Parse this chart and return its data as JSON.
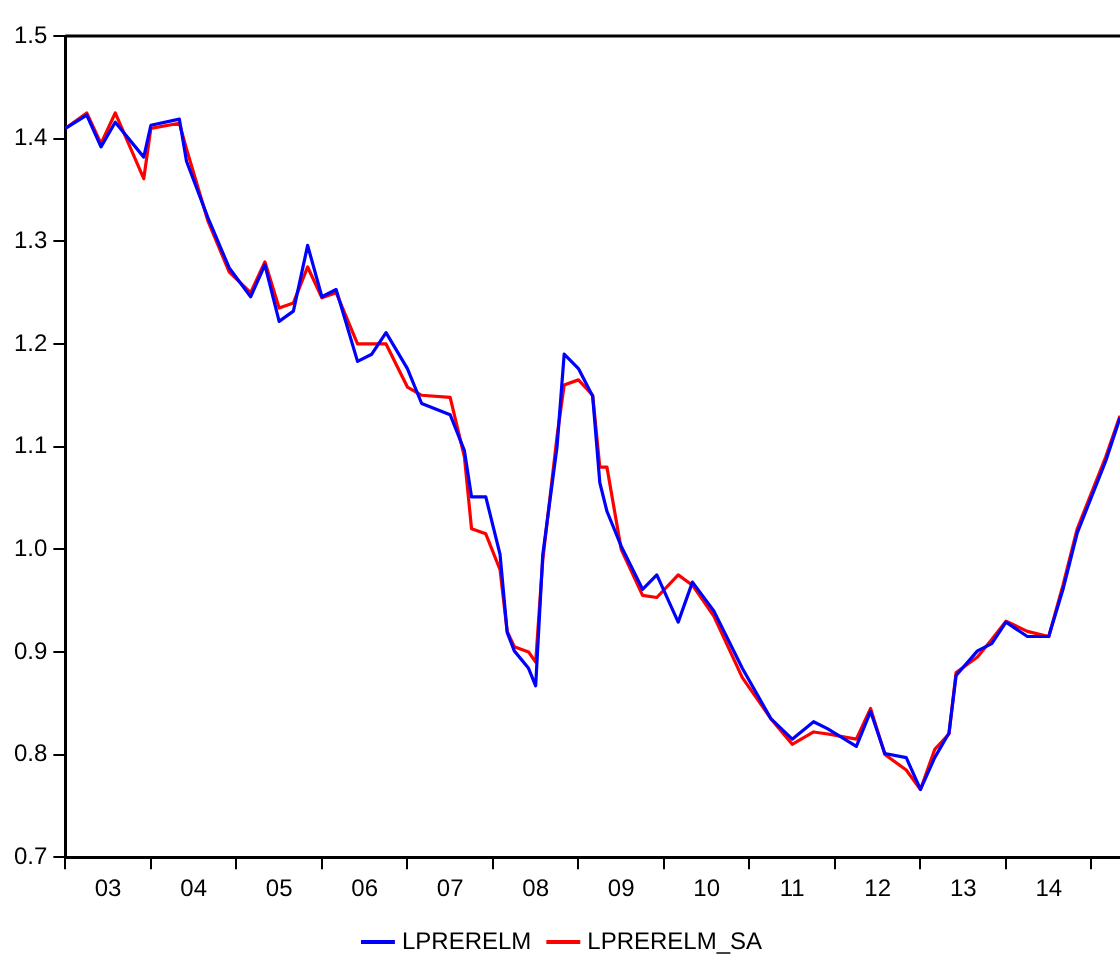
{
  "chart_data": {
    "type": "line",
    "xlim": [
      "2003-01",
      "2015-05"
    ],
    "xticks": [
      {
        "value": "2003-01",
        "label": null
      },
      {
        "value": "2003-07",
        "label": "03"
      },
      {
        "value": "2004-01",
        "label": null
      },
      {
        "value": "2004-07",
        "label": "04"
      },
      {
        "value": "2005-01",
        "label": null
      },
      {
        "value": "2005-07",
        "label": "05"
      },
      {
        "value": "2006-01",
        "label": null
      },
      {
        "value": "2006-07",
        "label": "06"
      },
      {
        "value": "2007-01",
        "label": null
      },
      {
        "value": "2007-07",
        "label": "07"
      },
      {
        "value": "2008-01",
        "label": null
      },
      {
        "value": "2008-07",
        "label": "08"
      },
      {
        "value": "2009-01",
        "label": null
      },
      {
        "value": "2009-07",
        "label": "09"
      },
      {
        "value": "2010-01",
        "label": null
      },
      {
        "value": "2010-07",
        "label": "10"
      },
      {
        "value": "2011-01",
        "label": null
      },
      {
        "value": "2011-07",
        "label": "11"
      },
      {
        "value": "2012-01",
        "label": null
      },
      {
        "value": "2012-07",
        "label": "12"
      },
      {
        "value": "2013-01",
        "label": null
      },
      {
        "value": "2013-07",
        "label": "13"
      },
      {
        "value": "2014-01",
        "label": null
      },
      {
        "value": "2014-07",
        "label": "14"
      },
      {
        "value": "2015-01",
        "label": null
      }
    ],
    "ylim": [
      0.7,
      1.5
    ],
    "yticks": [
      0.7,
      0.8,
      0.9,
      {
        "value": 1,
        "label": "1.0"
      },
      1.1,
      1.2,
      1.3,
      1.4,
      1.5
    ],
    "grid": false,
    "legend": "bottom",
    "marker": "none",
    "line_style": "solid",
    "x": [
      "2003-01",
      "2003-04",
      "2003-06",
      "2003-08",
      "2003-12",
      "2004-01",
      "2004-05",
      "2004-06",
      "2004-09",
      "2004-12",
      "2005-03",
      "2005-05",
      "2005-07",
      "2005-09",
      "2005-11",
      "2006-01",
      "2006-03",
      "2006-06",
      "2006-08",
      "2006-10",
      "2007-01",
      "2007-03",
      "2007-07",
      "2007-09",
      "2007-10",
      "2007-12",
      "2008-02",
      "2008-03",
      "2008-04",
      "2008-06",
      "2008-07",
      "2008-08",
      "2008-10",
      "2008-11",
      "2009-01",
      "2009-03",
      "2009-04",
      "2009-05",
      "2009-07",
      "2009-10",
      "2009-12",
      "2010-03",
      "2010-05",
      "2010-08",
      "2010-12",
      "2011-04",
      "2011-07",
      "2011-10",
      "2011-12",
      "2012-04",
      "2012-06",
      "2012-08",
      "2012-11",
      "2013-01",
      "2013-03",
      "2013-05",
      "2013-06",
      "2013-09",
      "2013-11",
      "2014-01",
      "2014-04",
      "2014-07",
      "2014-09",
      "2014-11",
      "2015-01",
      "2015-03",
      "2015-05"
    ],
    "series": [
      {
        "name": "LPRERELM",
        "color": "#0000ff",
        "values": [
          1.41,
          1.423,
          1.392,
          1.416,
          1.382,
          1.413,
          1.419,
          1.378,
          1.323,
          1.274,
          1.246,
          1.277,
          1.222,
          1.232,
          1.296,
          1.246,
          1.253,
          1.183,
          1.19,
          1.211,
          1.176,
          1.142,
          1.131,
          1.096,
          1.051,
          1.051,
          0.995,
          0.919,
          0.901,
          0.884,
          0.867,
          0.995,
          1.1,
          1.19,
          1.176,
          1.149,
          1.065,
          1.037,
          1.003,
          0.961,
          0.975,
          0.929,
          0.968,
          0.94,
          0.884,
          0.835,
          0.815,
          0.832,
          0.825,
          0.808,
          0.842,
          0.801,
          0.797,
          0.766,
          0.797,
          0.821,
          0.877,
          0.901,
          0.908,
          0.929,
          0.915,
          0.915,
          0.961,
          1.016,
          1.051,
          1.086,
          1.128
        ]
      },
      {
        "name": "LPRERELM_SA",
        "color": "#ff0000",
        "values": [
          1.41,
          1.425,
          1.395,
          1.425,
          1.361,
          1.41,
          1.415,
          1.39,
          1.32,
          1.27,
          1.25,
          1.28,
          1.235,
          1.24,
          1.275,
          1.245,
          1.25,
          1.2,
          1.2,
          1.2,
          1.158,
          1.15,
          1.148,
          1.09,
          1.02,
          1.015,
          0.98,
          0.92,
          0.905,
          0.9,
          0.89,
          0.99,
          1.11,
          1.16,
          1.165,
          1.15,
          1.08,
          1.08,
          1.0,
          0.955,
          0.953,
          0.975,
          0.965,
          0.935,
          0.875,
          0.835,
          0.81,
          0.822,
          0.82,
          0.815,
          0.845,
          0.8,
          0.785,
          0.766,
          0.805,
          0.82,
          0.88,
          0.895,
          0.912,
          0.93,
          0.92,
          0.915,
          0.965,
          1.02,
          1.055,
          1.09,
          1.13
        ]
      }
    ]
  }
}
